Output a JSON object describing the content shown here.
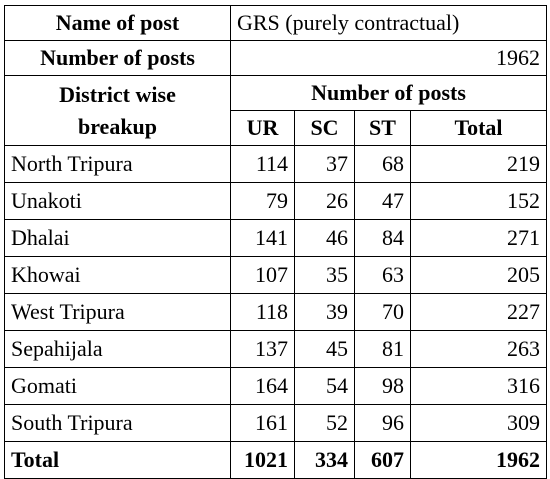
{
  "header": {
    "post_label": "Name of post",
    "post_value": "GRS (purely contractual)",
    "count_label": "Number of posts",
    "count_value": "1962",
    "breakup_label_line1": "District wise",
    "breakup_label_line2": "breakup",
    "group_header": "Number of posts"
  },
  "columns": [
    "UR",
    "SC",
    "ST",
    "Total"
  ],
  "rows": [
    {
      "district": "North Tripura",
      "ur": "114",
      "sc": "37",
      "st": "68",
      "total": "219"
    },
    {
      "district": "Unakoti",
      "ur": "79",
      "sc": "26",
      "st": "47",
      "total": "152"
    },
    {
      "district": "Dhalai",
      "ur": "141",
      "sc": "46",
      "st": "84",
      "total": "271"
    },
    {
      "district": "Khowai",
      "ur": "107",
      "sc": "35",
      "st": "63",
      "total": "205"
    },
    {
      "district": "West Tripura",
      "ur": "118",
      "sc": "39",
      "st": "70",
      "total": "227"
    },
    {
      "district": "Sepahijala",
      "ur": "137",
      "sc": "45",
      "st": "81",
      "total": "263"
    },
    {
      "district": "Gomati",
      "ur": "164",
      "sc": "54",
      "st": "98",
      "total": "316"
    },
    {
      "district": "South Tripura",
      "ur": "161",
      "sc": "52",
      "st": "96",
      "total": "309"
    }
  ],
  "totals": {
    "label": "Total",
    "ur": "1021",
    "sc": "334",
    "st": "607",
    "total": "1962"
  }
}
